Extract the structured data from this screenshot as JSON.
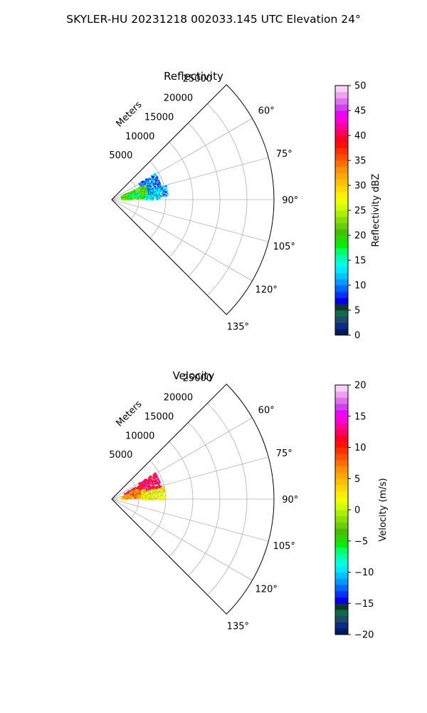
{
  "figure": {
    "title": "SKYLER-HU  20231218  002033.145 UTC Elevation 24°"
  },
  "chart_data": [
    {
      "type": "polar-sector",
      "title": "Reflectivity",
      "radial_axis_label": "Meters",
      "radial_ticks": [
        "5000",
        "10000",
        "15000",
        "20000",
        "25000"
      ],
      "radial_tick_values": [
        5000,
        10000,
        15000,
        20000,
        25000
      ],
      "r_max": 30000,
      "theta_range_deg": [
        45,
        135
      ],
      "theta_ticks": [
        "60°",
        "75°",
        "90°",
        "105°",
        "120°",
        "135°"
      ],
      "theta_tick_values": [
        60,
        75,
        90,
        105,
        120,
        135
      ],
      "grid": true,
      "colorbar": {
        "label": "Reflectivity dBZ",
        "range": [
          0,
          50
        ],
        "ticks": [
          "0",
          "5",
          "10",
          "15",
          "20",
          "25",
          "30",
          "35",
          "40",
          "45",
          "50"
        ],
        "tick_values": [
          0,
          5,
          10,
          15,
          20,
          25,
          30,
          35,
          40,
          45,
          50
        ],
        "colors": [
          "#001b58",
          "#0a2a8c",
          "#1e4a66",
          "#0a6b50",
          "#0f3a20",
          "#0000e8",
          "#0033ff",
          "#0066ff",
          "#0099ff",
          "#00c4ff",
          "#00e8ff",
          "#00ffe0",
          "#00ffaa",
          "#00ff60",
          "#00f000",
          "#26d800",
          "#44c000",
          "#66d000",
          "#88e000",
          "#aaf000",
          "#ccff00",
          "#eeff00",
          "#ffee00",
          "#ffd800",
          "#ffc000",
          "#ffa800",
          "#ff9000",
          "#ff7000",
          "#ff5000",
          "#ff3000",
          "#ff1000",
          "#ff0020",
          "#ff0060",
          "#ff00a0",
          "#ff00d8",
          "#f000ff",
          "#d040f0",
          "#e070f0",
          "#f0a0f0",
          "#f8d0f8"
        ]
      },
      "echo_regions": [
        {
          "range_m": [
            5800,
            9500
          ],
          "az_deg": [
            58,
            78
          ],
          "value": 10
        },
        {
          "range_m": [
            6500,
            10500
          ],
          "az_deg": [
            74,
            86
          ],
          "value": 11
        },
        {
          "range_m": [
            1800,
            6800
          ],
          "az_deg": [
            65,
            86
          ],
          "value": 21
        },
        {
          "range_m": [
            3200,
            5200
          ],
          "az_deg": [
            70,
            82
          ],
          "value": 17
        },
        {
          "range_m": [
            6000,
            9000
          ],
          "az_deg": [
            82,
            89
          ],
          "value": 13
        }
      ]
    },
    {
      "type": "polar-sector",
      "title": "Velocity",
      "radial_axis_label": "Meters",
      "radial_ticks": [
        "5000",
        "10000",
        "15000",
        "20000",
        "25000"
      ],
      "radial_tick_values": [
        5000,
        10000,
        15000,
        20000,
        25000
      ],
      "r_max": 30000,
      "theta_range_deg": [
        45,
        135
      ],
      "theta_ticks": [
        "60°",
        "75°",
        "90°",
        "105°",
        "120°",
        "135°"
      ],
      "theta_tick_values": [
        60,
        75,
        90,
        105,
        120,
        135
      ],
      "grid": true,
      "colorbar": {
        "label": "Velocity (m/s)",
        "range": [
          -20,
          20
        ],
        "ticks": [
          "−20",
          "−15",
          "−10",
          "−5",
          "0",
          "5",
          "10",
          "15",
          "20"
        ],
        "tick_values": [
          -20,
          -15,
          -10,
          -5,
          0,
          5,
          10,
          15,
          20
        ],
        "colors": [
          "#001b58",
          "#0a2a8c",
          "#1e4a66",
          "#0a6b50",
          "#0f3a20",
          "#0000e8",
          "#0033ff",
          "#0066ff",
          "#0099ff",
          "#00c4ff",
          "#00e8ff",
          "#00ffe0",
          "#00ffaa",
          "#00ff60",
          "#00f000",
          "#26d800",
          "#44c000",
          "#66d000",
          "#88e000",
          "#aaf000",
          "#ccff00",
          "#eeff00",
          "#ffee00",
          "#ffd800",
          "#ffc000",
          "#ffa800",
          "#ff9000",
          "#ff7000",
          "#ff5000",
          "#ff3000",
          "#ff1000",
          "#ff0020",
          "#ff0060",
          "#ff00a0",
          "#ff00d8",
          "#f000ff",
          "#d040f0",
          "#e070f0",
          "#f0a0f0",
          "#f8d0f8"
        ]
      },
      "echo_regions": [
        {
          "range_m": [
            5800,
            9500
          ],
          "az_deg": [
            58,
            76
          ],
          "value": 12
        },
        {
          "range_m": [
            2500,
            6500
          ],
          "az_deg": [
            62,
            76
          ],
          "value": 11
        },
        {
          "range_m": [
            1800,
            6500
          ],
          "az_deg": [
            72,
            86
          ],
          "value": 5
        },
        {
          "range_m": [
            5500,
            10000
          ],
          "az_deg": [
            76,
            90
          ],
          "value": 2
        },
        {
          "range_m": [
            3500,
            5500
          ],
          "az_deg": [
            68,
            80
          ],
          "value": 7
        }
      ]
    }
  ]
}
